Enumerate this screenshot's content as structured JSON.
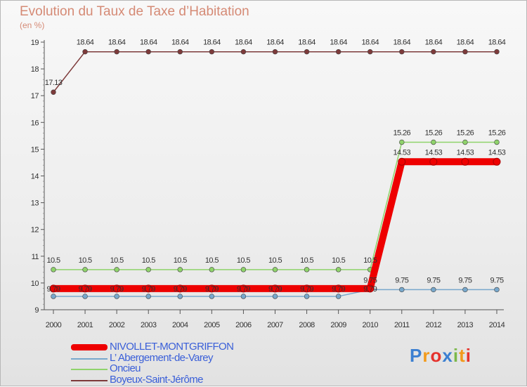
{
  "title": "Evolution du Taux de Taxe d’Habitation",
  "unit": "(en %)",
  "logo": {
    "letters": [
      "P",
      "r",
      "o",
      "x",
      "i",
      "t",
      "i"
    ],
    "colors": [
      "#3b7fd1",
      "#f29a1b",
      "#e5322d",
      "#3b7fd1",
      "#7bb84a",
      "#f29a1b",
      "#e5322d"
    ]
  },
  "chart_data": {
    "type": "line",
    "title": "Evolution du Taux de Taxe d’Habitation",
    "ylabel": "(en %)",
    "x": [
      "2000",
      "2001",
      "2002",
      "2003",
      "2004",
      "2005",
      "2006",
      "2007",
      "2008",
      "2009",
      "2010",
      "2011",
      "2012",
      "2013",
      "2014"
    ],
    "ylim": [
      9,
      19
    ],
    "yticks": [
      "9",
      "10",
      "11",
      "12",
      "13",
      "14",
      "15",
      "16",
      "17",
      "18",
      "19"
    ],
    "series": [
      {
        "name": "NIVOLLET-MONTGRIFFON",
        "color": "#ee0000",
        "thick": true,
        "values": [
          9.79,
          9.79,
          9.79,
          9.79,
          9.79,
          9.79,
          9.79,
          9.79,
          9.79,
          9.79,
          9.79,
          14.53,
          14.53,
          14.53,
          14.53
        ],
        "labels": [
          "9.79",
          "9.79",
          "9.79",
          "9.79",
          "9.79",
          "9.79",
          "9.79",
          "9.79",
          "9.79",
          "9.79",
          "9.79",
          "14.53",
          "14.53",
          "14.53",
          "14.53"
        ]
      },
      {
        "name": "L’ Abergement-de-Varey",
        "color": "#78a8cc",
        "values": [
          9.5,
          9.5,
          9.5,
          9.5,
          9.5,
          9.5,
          9.5,
          9.5,
          9.5,
          9.5,
          9.75,
          9.75,
          9.75,
          9.75,
          9.75
        ],
        "labels": [
          "",
          "",
          "",
          "",
          "",
          "",
          "",
          "",
          "",
          "",
          "9.75",
          "9.75",
          "9.75",
          "9.75",
          "9.75"
        ]
      },
      {
        "name": "Oncieu",
        "color": "#8fd36b",
        "values": [
          10.5,
          10.5,
          10.5,
          10.5,
          10.5,
          10.5,
          10.5,
          10.5,
          10.5,
          10.5,
          10.5,
          15.26,
          15.26,
          15.26,
          15.26
        ],
        "labels": [
          "10.5",
          "10.5",
          "10.5",
          "10.5",
          "10.5",
          "10.5",
          "10.5",
          "10.5",
          "10.5",
          "10.5",
          "10.5",
          "15.26",
          "15.26",
          "15.26",
          "15.26"
        ]
      },
      {
        "name": "Boyeux-Saint-Jérôme",
        "color": "#7d3a3a",
        "values": [
          17.13,
          18.64,
          18.64,
          18.64,
          18.64,
          18.64,
          18.64,
          18.64,
          18.64,
          18.64,
          18.64,
          18.64,
          18.64,
          18.64,
          18.64
        ],
        "labels": [
          "17.13",
          "18.64",
          "18.64",
          "18.64",
          "18.64",
          "18.64",
          "18.64",
          "18.64",
          "18.64",
          "18.64",
          "18.64",
          "18.64",
          "18.64",
          "18.64",
          "18.64"
        ]
      }
    ],
    "legend_order": [
      0,
      1,
      2,
      3
    ]
  }
}
